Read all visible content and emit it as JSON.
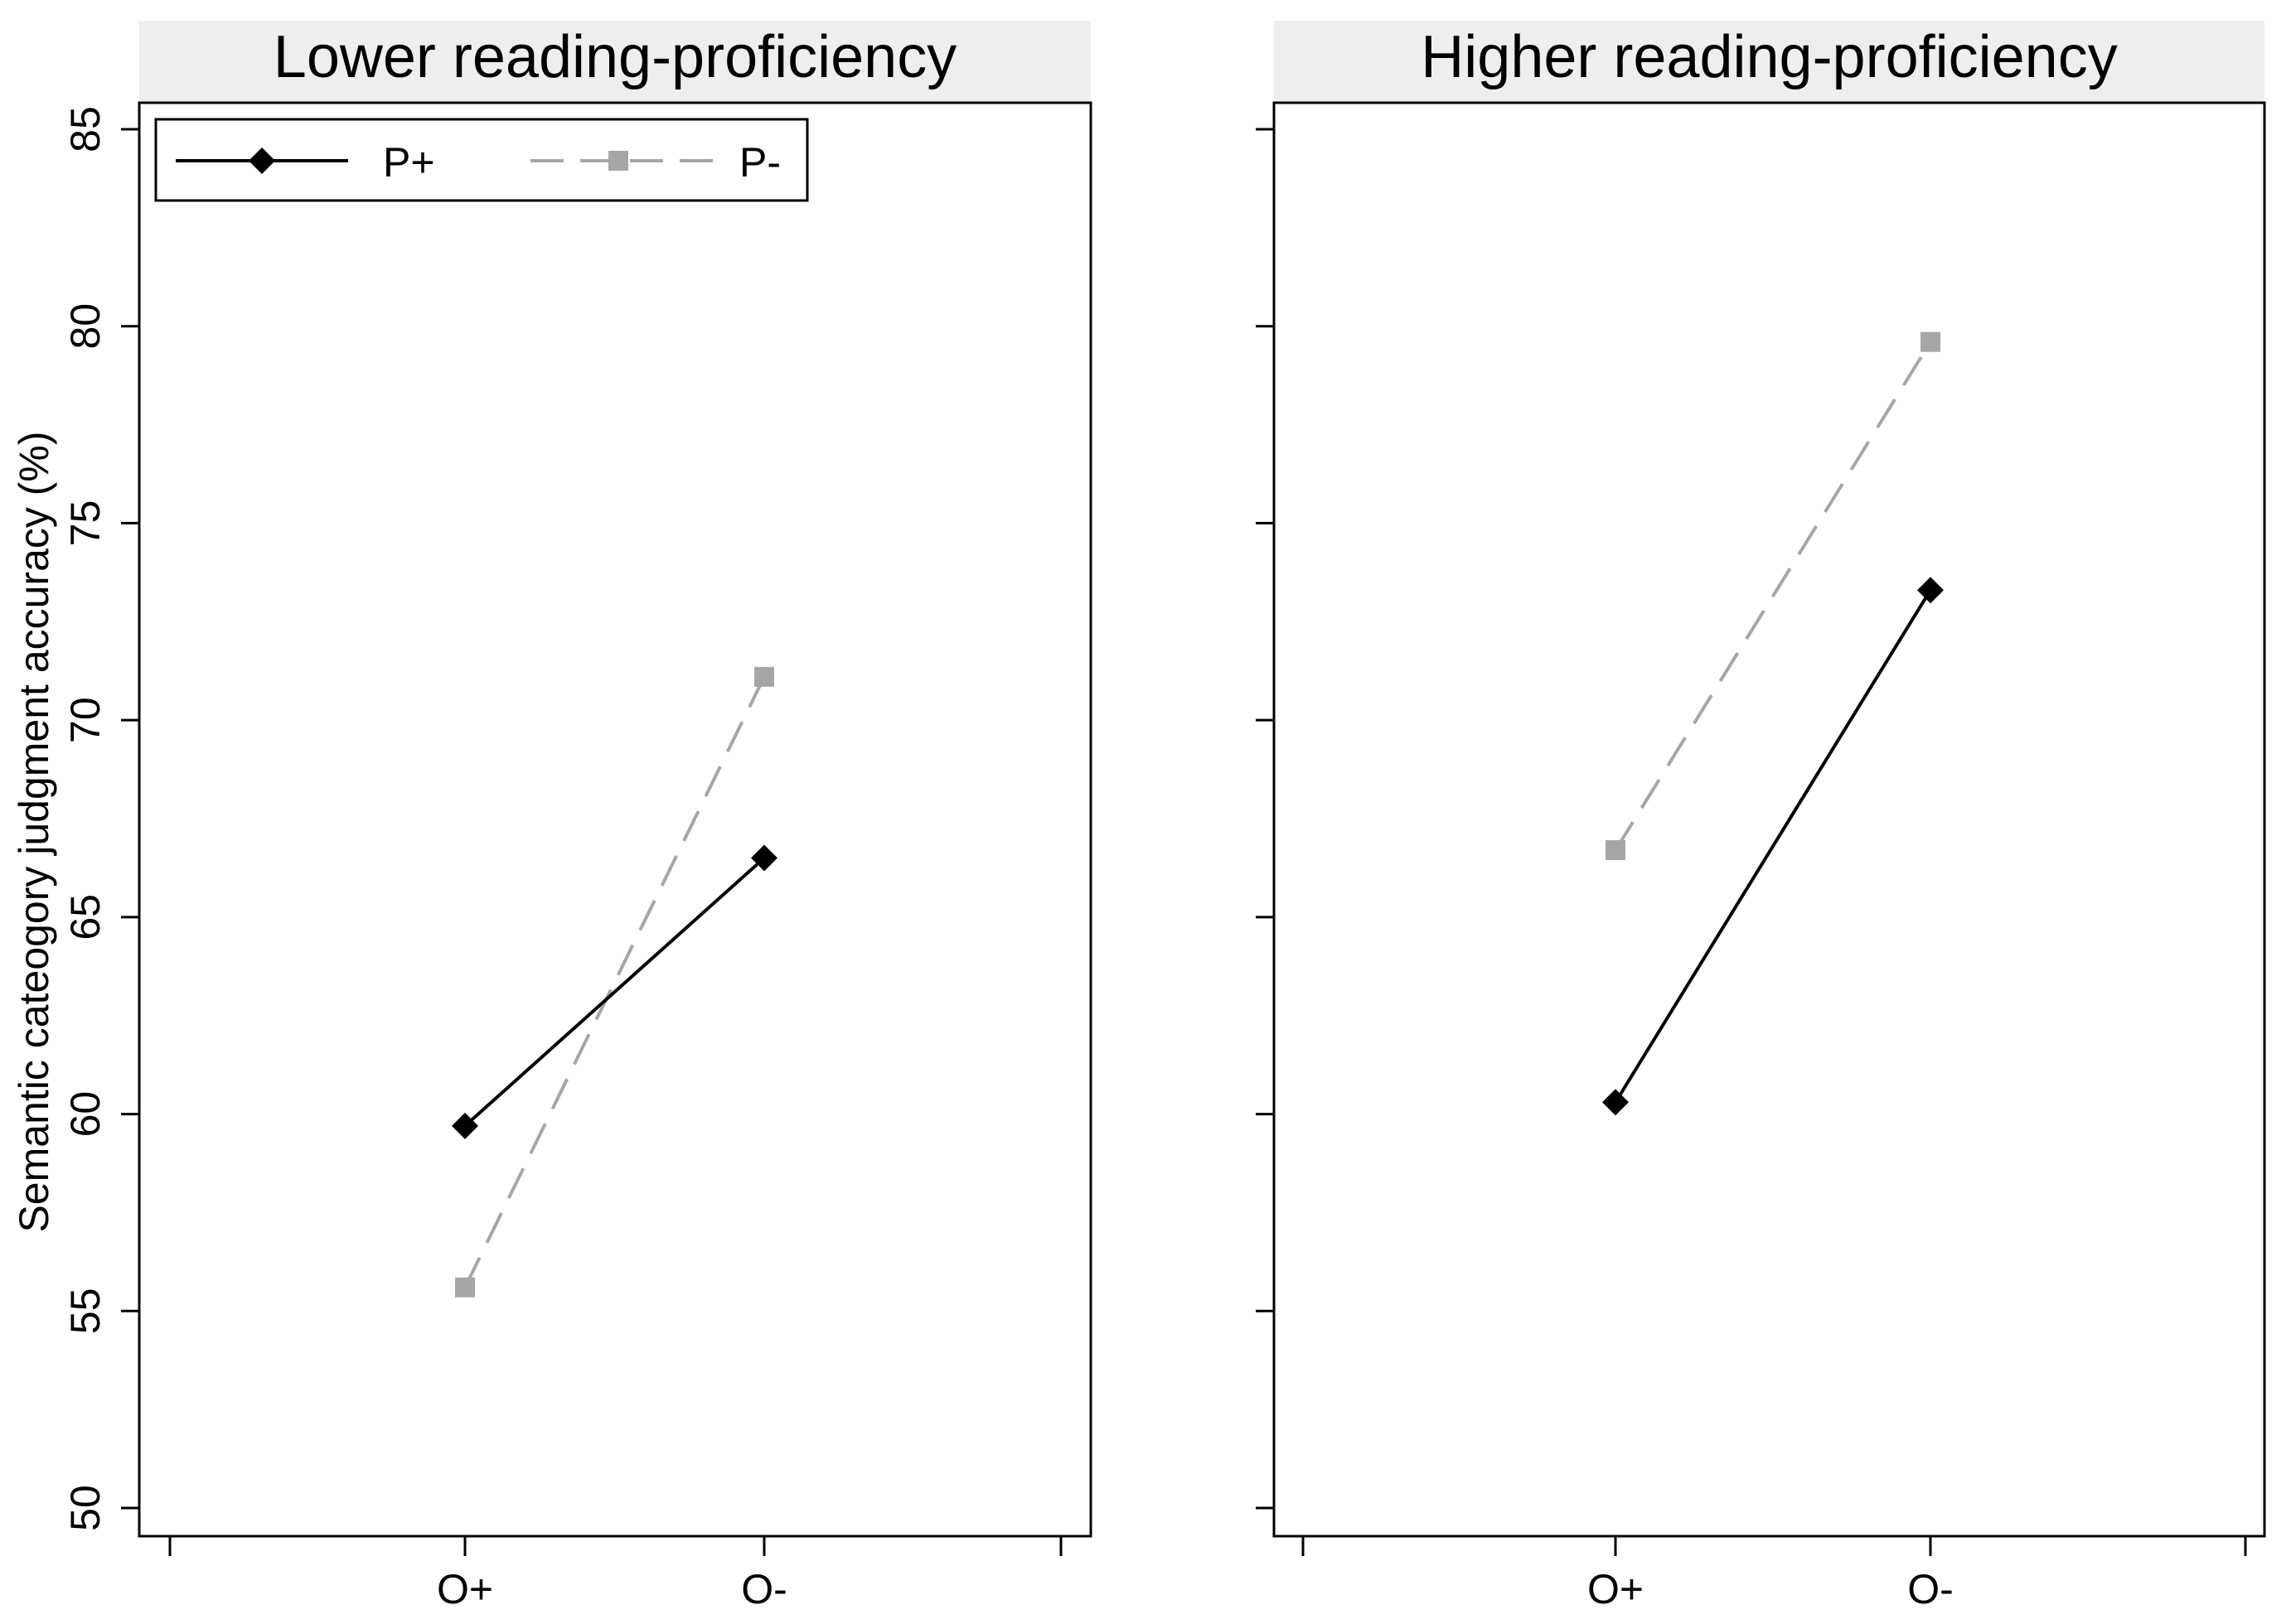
{
  "chart_data": {
    "type": "line",
    "ylabel": "Semantic cateogory judgment accuracy (%)",
    "ylim": [
      50,
      85
    ],
    "yticks": [
      50,
      55,
      60,
      65,
      70,
      75,
      80,
      85
    ],
    "categories": [
      "O+",
      "O-"
    ],
    "legend_position": "top-left",
    "grid": false,
    "panels": [
      {
        "title": "Lower reading-proficiency",
        "series": [
          {
            "name": "P+",
            "values": [
              59.7,
              66.5
            ],
            "color": "#000000",
            "marker": "diamond",
            "dash": "solid"
          },
          {
            "name": "P-",
            "values": [
              55.6,
              71.1
            ],
            "color": "#a6a6a6",
            "marker": "square",
            "dash": "dashed"
          }
        ]
      },
      {
        "title": "Higher reading-proficiency",
        "series": [
          {
            "name": "P+",
            "values": [
              60.3,
              73.3
            ],
            "color": "#000000",
            "marker": "diamond",
            "dash": "solid"
          },
          {
            "name": "P-",
            "values": [
              66.7,
              79.6
            ],
            "color": "#a6a6a6",
            "marker": "square",
            "dash": "dashed"
          }
        ]
      }
    ],
    "colors": {
      "header_bg": "#eeeeee",
      "frame": "#000000"
    }
  }
}
